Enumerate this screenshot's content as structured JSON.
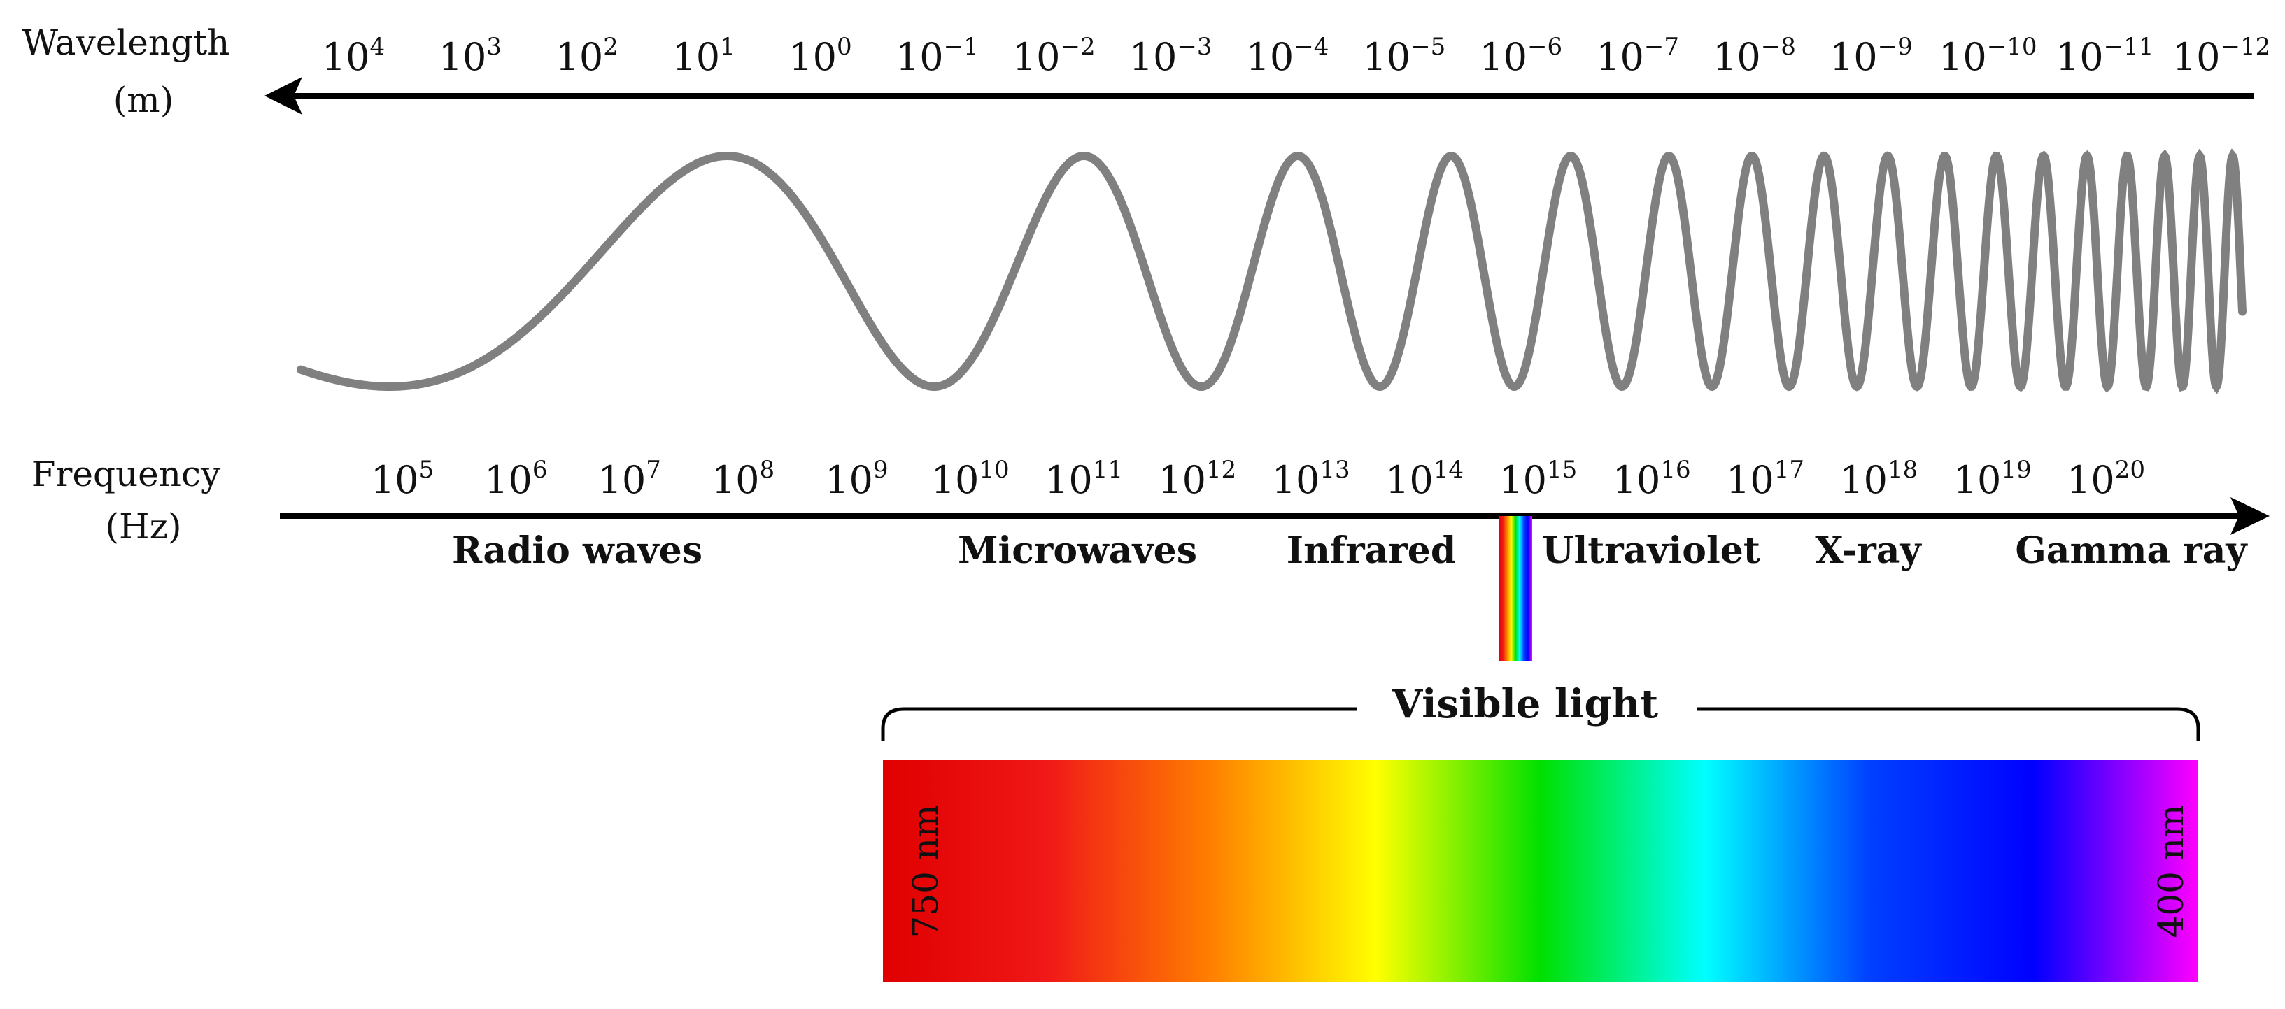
{
  "wavelength_axis": {
    "title_line1": "Wavelength",
    "title_line2": "(m)",
    "ticks": [
      {
        "base": "10",
        "exp": "4"
      },
      {
        "base": "10",
        "exp": "3"
      },
      {
        "base": "10",
        "exp": "2"
      },
      {
        "base": "10",
        "exp": "1"
      },
      {
        "base": "10",
        "exp": "0"
      },
      {
        "base": "10",
        "exp": "−1"
      },
      {
        "base": "10",
        "exp": "−2"
      },
      {
        "base": "10",
        "exp": "−3"
      },
      {
        "base": "10",
        "exp": "−4"
      },
      {
        "base": "10",
        "exp": "−5"
      },
      {
        "base": "10",
        "exp": "−6"
      },
      {
        "base": "10",
        "exp": "−7"
      },
      {
        "base": "10",
        "exp": "−8"
      },
      {
        "base": "10",
        "exp": "−9"
      },
      {
        "base": "10",
        "exp": "−10"
      },
      {
        "base": "10",
        "exp": "−11"
      },
      {
        "base": "10",
        "exp": "−12"
      }
    ],
    "arrow_direction": "left"
  },
  "frequency_axis": {
    "title_line1": "Frequency",
    "title_line2": "(Hz)",
    "ticks": [
      {
        "base": "10",
        "exp": "5"
      },
      {
        "base": "10",
        "exp": "6"
      },
      {
        "base": "10",
        "exp": "7"
      },
      {
        "base": "10",
        "exp": "8"
      },
      {
        "base": "10",
        "exp": "9"
      },
      {
        "base": "10",
        "exp": "10"
      },
      {
        "base": "10",
        "exp": "11"
      },
      {
        "base": "10",
        "exp": "12"
      },
      {
        "base": "10",
        "exp": "13"
      },
      {
        "base": "10",
        "exp": "14"
      },
      {
        "base": "10",
        "exp": "15"
      },
      {
        "base": "10",
        "exp": "16"
      },
      {
        "base": "10",
        "exp": "17"
      },
      {
        "base": "10",
        "exp": "18"
      },
      {
        "base": "10",
        "exp": "19"
      },
      {
        "base": "10",
        "exp": "20"
      }
    ],
    "arrow_direction": "right"
  },
  "bands": [
    {
      "label": "Radio waves"
    },
    {
      "label": "Microwaves"
    },
    {
      "label": "Infrared"
    },
    {
      "label": "Ultraviolet"
    },
    {
      "label": "X-ray"
    },
    {
      "label": "Gamma ray"
    }
  ],
  "visible_light": {
    "title": "Visible light",
    "start_label": "750 nm",
    "end_label": "400 nm",
    "gradient_colors": [
      "#e00000",
      "#f01818",
      "#ff8000",
      "#ffff00",
      "#00e000",
      "#00ffff",
      "#0040ff",
      "#0000ff",
      "#ff00ff"
    ]
  },
  "colors": {
    "wave": "#808080",
    "axis": "#000000"
  }
}
